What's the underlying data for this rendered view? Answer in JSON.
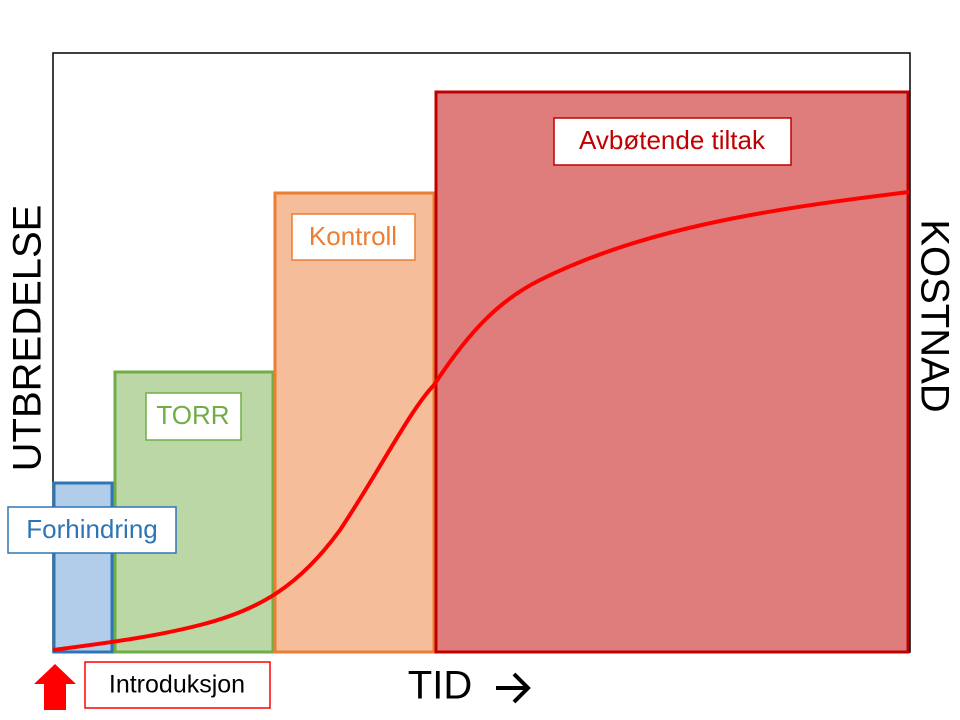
{
  "axes": {
    "y_left": "UTBREDELSE",
    "y_right": "KOSTNAD",
    "x": "TID"
  },
  "stages": [
    {
      "label": "Forhindring"
    },
    {
      "label": "TORR"
    },
    {
      "label": "Kontroll"
    },
    {
      "label": "Avbøtende tiltak"
    }
  ],
  "start_label": "Introduksjon"
}
